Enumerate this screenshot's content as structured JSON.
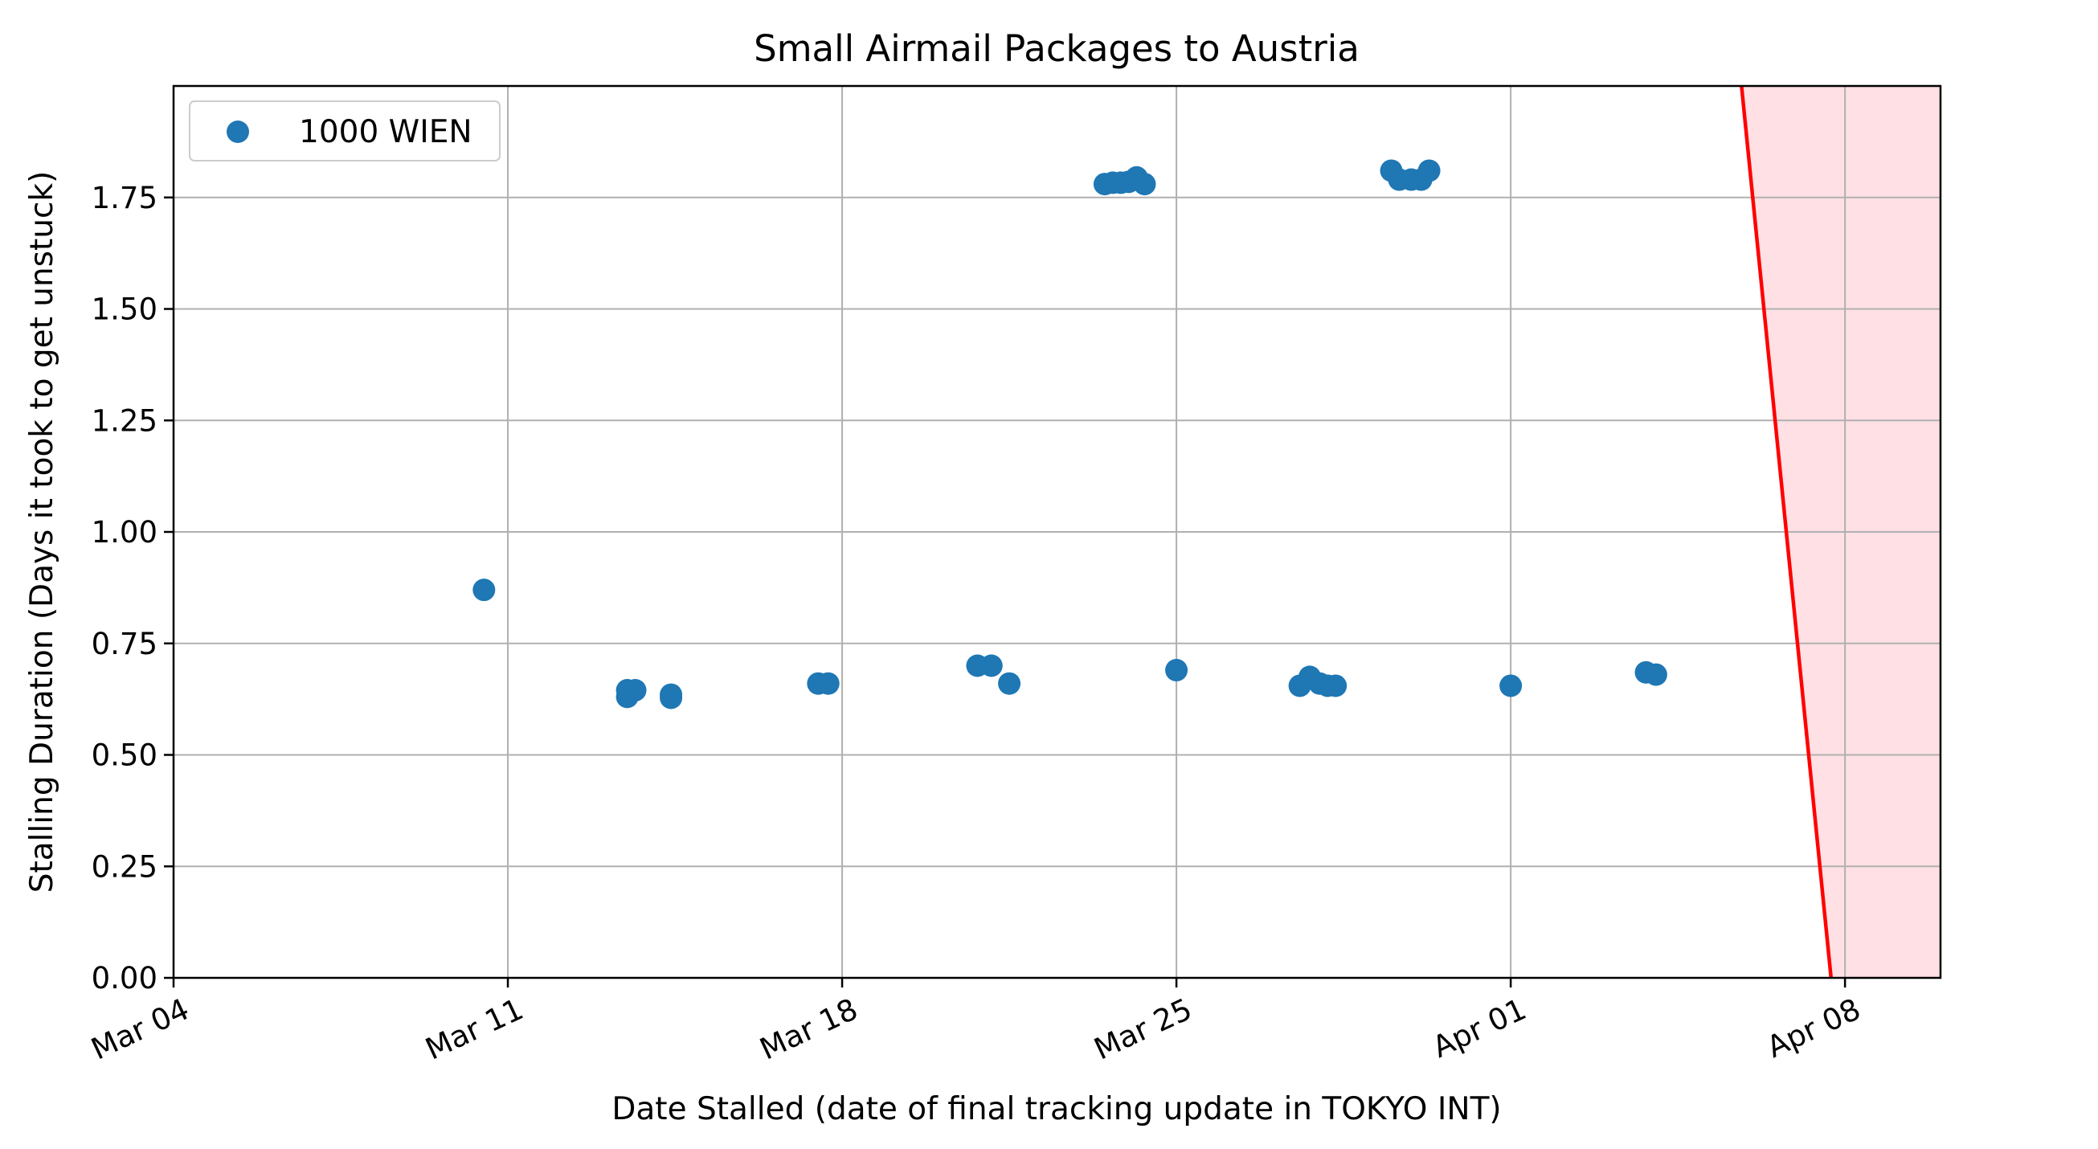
{
  "chart_data": {
    "type": "scatter",
    "title": "Small Airmail Packages to Austria",
    "xlabel": "Date Stalled (date of final tracking update in TOKYO INT)",
    "ylabel": "Stalling Duration (Days it took to get unstuck)",
    "x_axis_type": "date",
    "xlim": [
      "2024-03-04",
      "2024-04-10"
    ],
    "ylim": [
      0,
      2.0
    ],
    "xticks": [
      {
        "date": "2024-03-04",
        "label": "Mar 04"
      },
      {
        "date": "2024-03-11",
        "label": "Mar 11"
      },
      {
        "date": "2024-03-18",
        "label": "Mar 18"
      },
      {
        "date": "2024-03-25",
        "label": "Mar 25"
      },
      {
        "date": "2024-04-01",
        "label": "Apr 01"
      },
      {
        "date": "2024-04-08",
        "label": "Apr 08"
      }
    ],
    "yticks": [
      "0.00",
      "0.25",
      "0.50",
      "0.75",
      "1.00",
      "1.25",
      "1.50",
      "1.75"
    ],
    "grid": true,
    "legend_position": "top-left",
    "series": [
      {
        "name": "1000 WIEN",
        "color": "#1f77b4",
        "points": [
          {
            "x": "2024-03-10 12:00",
            "y": 0.87
          },
          {
            "x": "2024-03-13 12:00",
            "y": 0.645
          },
          {
            "x": "2024-03-13 12:00",
            "y": 0.63
          },
          {
            "x": "2024-03-13 16:00",
            "y": 0.645
          },
          {
            "x": "2024-03-14 10:00",
            "y": 0.635
          },
          {
            "x": "2024-03-14 10:00",
            "y": 0.628
          },
          {
            "x": "2024-03-17 12:00",
            "y": 0.66
          },
          {
            "x": "2024-03-17 17:00",
            "y": 0.66
          },
          {
            "x": "2024-03-20 20:00",
            "y": 0.7
          },
          {
            "x": "2024-03-21 03:00",
            "y": 0.7
          },
          {
            "x": "2024-03-21 12:00",
            "y": 0.66
          },
          {
            "x": "2024-03-23 12:00",
            "y": 1.78
          },
          {
            "x": "2024-03-23 16:00",
            "y": 1.783
          },
          {
            "x": "2024-03-23 20:00",
            "y": 1.783
          },
          {
            "x": "2024-03-24 00:00",
            "y": 1.785
          },
          {
            "x": "2024-03-24 04:00",
            "y": 1.795
          },
          {
            "x": "2024-03-24 08:00",
            "y": 1.78
          },
          {
            "x": "2024-03-25 00:00",
            "y": 0.69
          },
          {
            "x": "2024-03-27 14:00",
            "y": 0.655
          },
          {
            "x": "2024-03-27 19:00",
            "y": 0.675
          },
          {
            "x": "2024-03-28 00:00",
            "y": 0.66
          },
          {
            "x": "2024-03-28 04:00",
            "y": 0.655
          },
          {
            "x": "2024-03-28 08:00",
            "y": 0.655
          },
          {
            "x": "2024-03-29 12:00",
            "y": 1.81
          },
          {
            "x": "2024-03-29 16:00",
            "y": 1.79
          },
          {
            "x": "2024-03-29 22:00",
            "y": 1.79
          },
          {
            "x": "2024-03-30 03:00",
            "y": 1.79
          },
          {
            "x": "2024-03-30 07:00",
            "y": 1.81
          },
          {
            "x": "2024-04-01 00:00",
            "y": 0.655
          },
          {
            "x": "2024-04-03 20:00",
            "y": 0.685
          },
          {
            "x": "2024-04-04 01:00",
            "y": 0.68
          }
        ]
      }
    ],
    "threshold_line": {
      "color": "#ff0000",
      "from": {
        "x": "2024-04-05 20:00",
        "y": 2.0
      },
      "to": {
        "x": "2024-04-07 17:00",
        "y": 0
      }
    },
    "shaded_region": {
      "color": "#ffe0e4"
    }
  }
}
